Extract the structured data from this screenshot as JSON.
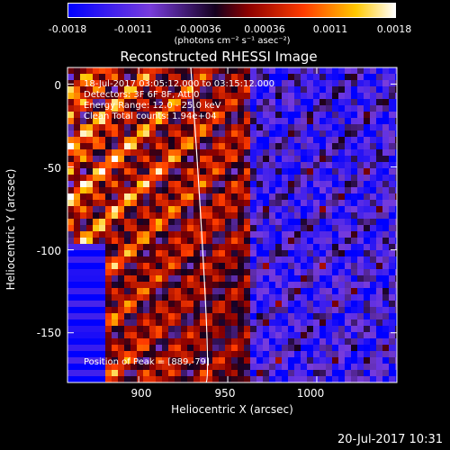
{
  "colorbar": {
    "ticks": [
      "-0.0018",
      "-0.0011",
      "-0.00036",
      "0.00036",
      "0.0011",
      "0.0018"
    ],
    "unit_label": "(photons cm⁻² s⁻¹ asec⁻²)"
  },
  "chart_data": {
    "type": "heatmap",
    "title": "Reconstructed RHESSI Image",
    "xlabel": "Heliocentric X (arcsec)",
    "ylabel": "Heliocentric Y (arcsec)",
    "xlim": [
      860,
      1045
    ],
    "ylim": [
      -180,
      10
    ],
    "x_ticks": [
      "900",
      "950",
      "1000"
    ],
    "y_ticks": [
      "0",
      "-50",
      "-100",
      "-150"
    ],
    "zlim": [
      -0.0018,
      0.0018
    ],
    "annotations": {
      "time_range": "18-Jul-2017 03:05:12.000 to 03:15:12.000",
      "detectors": "Detectors: 3F 6F 8F, Att 0",
      "energy_range": "Energy Range: 12.0 - 25.0 keV",
      "method": "Clean     Total counts: 1.94e+04",
      "peak": "Position of Peak = [889,-79]"
    }
  },
  "footer": {
    "timestamp": "20-Jul-2017 10:31"
  }
}
